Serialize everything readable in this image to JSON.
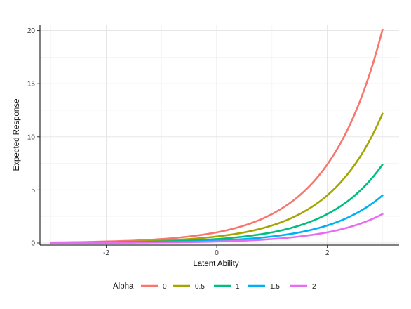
{
  "chart_data": {
    "type": "line",
    "xlabel": "Latent Ability",
    "ylabel": "Expected Response",
    "xlim": [
      -3.2,
      3.3
    ],
    "ylim": [
      -0.2,
      20.5
    ],
    "x_ticks": [
      -2,
      0,
      2
    ],
    "x_tick_labels": [
      "-2",
      "0",
      "2"
    ],
    "y_ticks": [
      0,
      5,
      10,
      15,
      20
    ],
    "y_tick_labels": [
      "0",
      "5",
      "10",
      "15",
      "20"
    ],
    "grid": true,
    "legend": {
      "title": "Alpha",
      "placement": "bottom"
    },
    "x": [
      -3,
      -2.5,
      -2,
      -1.5,
      -1,
      -0.5,
      0,
      0.5,
      1,
      1.5,
      2,
      2.5,
      3
    ],
    "series": [
      {
        "name": "0",
        "color": "#F8766D",
        "values": [
          0.05,
          0.08,
          0.14,
          0.22,
          0.37,
          0.61,
          1.0,
          1.65,
          2.72,
          4.48,
          7.39,
          12.18,
          20.09
        ]
      },
      {
        "name": "0.5",
        "color": "#A3A500",
        "values": [
          0.03,
          0.05,
          0.08,
          0.13,
          0.22,
          0.37,
          0.61,
          1.0,
          1.65,
          2.72,
          4.48,
          7.39,
          12.18
        ]
      },
      {
        "name": "1",
        "color": "#00BF7D",
        "values": [
          0.02,
          0.03,
          0.05,
          0.08,
          0.14,
          0.22,
          0.37,
          0.61,
          1.0,
          1.65,
          2.72,
          4.48,
          7.39
        ]
      },
      {
        "name": "1.5",
        "color": "#00B0F6",
        "values": [
          0.01,
          0.02,
          0.03,
          0.05,
          0.08,
          0.13,
          0.22,
          0.37,
          0.61,
          1.0,
          1.65,
          2.72,
          4.48
        ]
      },
      {
        "name": "2",
        "color": "#E76BF3",
        "values": [
          0.01,
          0.01,
          0.02,
          0.03,
          0.05,
          0.08,
          0.14,
          0.22,
          0.37,
          0.61,
          1.0,
          1.65,
          2.72
        ]
      }
    ]
  }
}
